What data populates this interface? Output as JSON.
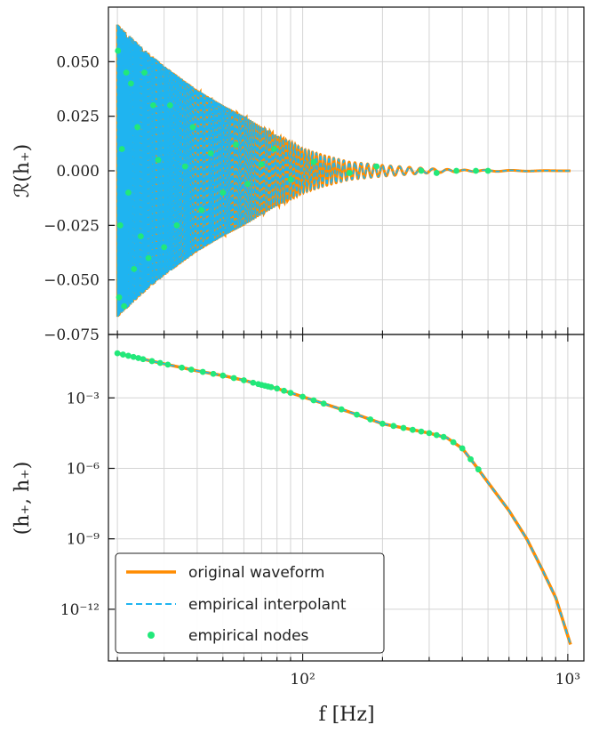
{
  "chart_data": [
    {
      "type": "line",
      "panel": "top",
      "ylabel": "ℛ(h₊)",
      "xscale": "log",
      "xlim": [
        18.5,
        1150
      ],
      "ylim": [
        -0.075,
        0.075
      ],
      "yticks": [
        "0.050",
        "0.025",
        "0.000",
        "−0.025",
        "−0.050",
        "−0.075"
      ],
      "ytick_values": [
        0.05,
        0.025,
        0.0,
        -0.025,
        -0.05,
        -0.075
      ],
      "grid": true,
      "description_series": [
        "original waveform",
        "empirical interpolant",
        "empirical nodes"
      ],
      "envelope": {
        "f": [
          20,
          25,
          30,
          40,
          50,
          60,
          70,
          80,
          90,
          100,
          120,
          150,
          200,
          300,
          400,
          1024
        ],
        "amplitude": [
          0.067,
          0.056,
          0.048,
          0.037,
          0.03,
          0.025,
          0.02,
          0.016,
          0.013,
          0.01,
          0.007,
          0.004,
          0.0025,
          0.001,
          0.0004,
          0.0
        ]
      },
      "nodes": [
        {
          "f": 20.1,
          "y": 0.055
        },
        {
          "f": 20.3,
          "y": -0.058
        },
        {
          "f": 20.5,
          "y": -0.025
        },
        {
          "f": 20.8,
          "y": 0.01
        },
        {
          "f": 21.2,
          "y": -0.062
        },
        {
          "f": 21.6,
          "y": 0.045
        },
        {
          "f": 22.0,
          "y": -0.01
        },
        {
          "f": 22.5,
          "y": 0.04
        },
        {
          "f": 23.1,
          "y": -0.045
        },
        {
          "f": 23.8,
          "y": 0.02
        },
        {
          "f": 24.5,
          "y": -0.03
        },
        {
          "f": 25.3,
          "y": 0.045
        },
        {
          "f": 26.2,
          "y": -0.04
        },
        {
          "f": 27.3,
          "y": 0.03
        },
        {
          "f": 28.5,
          "y": 0.005
        },
        {
          "f": 30.0,
          "y": -0.035
        },
        {
          "f": 31.6,
          "y": 0.03
        },
        {
          "f": 33.5,
          "y": -0.025
        },
        {
          "f": 36.0,
          "y": 0.002
        },
        {
          "f": 38.5,
          "y": 0.02
        },
        {
          "f": 41.5,
          "y": -0.018
        },
        {
          "f": 45.0,
          "y": 0.008
        },
        {
          "f": 50.0,
          "y": -0.01
        },
        {
          "f": 56.0,
          "y": 0.012
        },
        {
          "f": 62.0,
          "y": -0.006
        },
        {
          "f": 70.0,
          "y": 0.003
        },
        {
          "f": 78.0,
          "y": 0.01
        },
        {
          "f": 90.0,
          "y": -0.004
        },
        {
          "f": 110.0,
          "y": 0.004
        },
        {
          "f": 150.0,
          "y": -0.001
        },
        {
          "f": 190.0,
          "y": 0.002
        },
        {
          "f": 280.0,
          "y": 0.0
        },
        {
          "f": 320.0,
          "y": -0.001
        },
        {
          "f": 380.0,
          "y": 0.0
        },
        {
          "f": 450.0,
          "y": 0.0
        },
        {
          "f": 500.0,
          "y": 0.0
        }
      ]
    },
    {
      "type": "line",
      "panel": "bottom",
      "xlabel": "f [Hz]",
      "ylabel": "(h₊, h₊)",
      "xscale": "log",
      "yscale": "log",
      "xlim": [
        18.5,
        1150
      ],
      "ylim_log10": [
        -14.2,
        -0.3
      ],
      "xticks": [
        "10²",
        "10³"
      ],
      "xtick_values": [
        100,
        1000
      ],
      "yticks": [
        "10⁻³",
        "10⁻⁶",
        "10⁻⁹",
        "10⁻¹²"
      ],
      "ytick_values": [
        -3,
        -6,
        -9,
        -12
      ],
      "grid": true,
      "legend_placement": "lower-left",
      "curve": {
        "f": [
          20,
          25,
          30,
          40,
          50,
          60,
          70,
          80,
          100,
          150,
          200,
          300,
          350,
          400,
          450,
          500,
          600,
          700,
          800,
          900,
          1024
        ],
        "log10_y": [
          -1.1,
          -1.35,
          -1.55,
          -1.85,
          -2.05,
          -2.25,
          -2.45,
          -2.6,
          -2.95,
          -3.6,
          -4.1,
          -4.5,
          -4.7,
          -5.15,
          -5.9,
          -6.6,
          -7.8,
          -9.0,
          -10.3,
          -11.5,
          -13.5
        ]
      },
      "nodes_f": [
        20,
        21,
        22,
        23,
        24,
        25,
        27,
        29,
        31,
        35,
        38,
        42,
        46,
        50,
        55,
        60,
        65,
        68,
        70,
        72,
        74,
        76,
        80,
        85,
        90,
        100,
        110,
        120,
        140,
        160,
        180,
        200,
        220,
        240,
        260,
        280,
        300,
        320,
        340,
        370,
        400,
        430,
        460
      ],
      "series": [
        {
          "name": "original waveform",
          "color": "#ff8c00",
          "style": "solid"
        },
        {
          "name": "empirical interpolant",
          "color": "#1fb4f0",
          "style": "dashed"
        },
        {
          "name": "empirical nodes",
          "color": "#22e87a",
          "style": "markers"
        }
      ]
    }
  ]
}
